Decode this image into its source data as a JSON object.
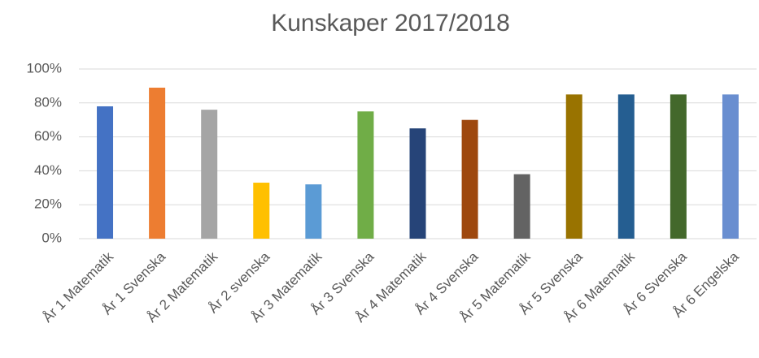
{
  "chart_data": {
    "type": "bar",
    "title": "Kunskaper 2017/2018",
    "categories": [
      "År 1 Matematik",
      "År 1 Svenska",
      "År 2 Matematik",
      "År 2 svenska",
      "År 3 Matematik",
      "År 3 Svenska",
      "År 4 Matematik",
      "År 4 Svenska",
      "År 5 Matematik",
      "År 5 Svenska",
      "År 6 Matematik",
      "År 6 Svenska",
      "År 6 Engelska"
    ],
    "values": [
      78,
      89,
      76,
      33,
      32,
      75,
      65,
      70,
      38,
      85,
      85,
      85,
      85
    ],
    "colors": [
      "#4472c4",
      "#ed7d31",
      "#a5a5a5",
      "#ffc000",
      "#5b9bd5",
      "#70ad47",
      "#264478",
      "#9e480e",
      "#636363",
      "#997300",
      "#255e91",
      "#43682b",
      "#698ed0"
    ],
    "ylim": [
      0,
      100
    ],
    "yticks": [
      {
        "value": 0,
        "label": "0%"
      },
      {
        "value": 20,
        "label": "20%"
      },
      {
        "value": 40,
        "label": "40%"
      },
      {
        "value": 60,
        "label": "60%"
      },
      {
        "value": 80,
        "label": "80%"
      },
      {
        "value": 100,
        "label": "100%"
      }
    ],
    "grid": true
  }
}
